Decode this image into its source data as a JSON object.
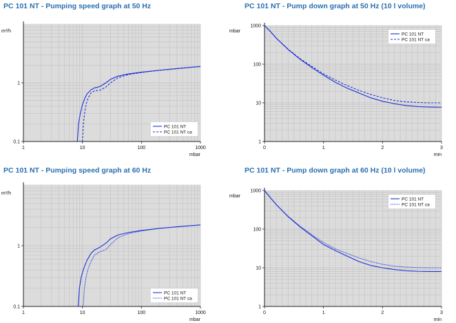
{
  "chart_data": [
    {
      "type": "line",
      "title": "PC 101 NT - Pumping speed graph at 50 Hz",
      "xscale": "log",
      "yscale": "log",
      "xlim": [
        1,
        1000
      ],
      "ylim": [
        0.1,
        10
      ],
      "xticks": [
        "1",
        "10",
        "100",
        "1000"
      ],
      "yticks": [
        "0.1",
        "1"
      ],
      "xlabel": "mbar",
      "ylabel": "m³/h",
      "legend": "bottom-right",
      "series": [
        {
          "name": "PC 101 NT",
          "style": "solid",
          "x": [
            8.2,
            8.6,
            9.2,
            10,
            11,
            12,
            14,
            16,
            18,
            20,
            25,
            30,
            40,
            60,
            100,
            200,
            400,
            1000
          ],
          "y": [
            0.1,
            0.2,
            0.3,
            0.42,
            0.55,
            0.65,
            0.76,
            0.82,
            0.84,
            0.87,
            1.0,
            1.15,
            1.3,
            1.42,
            1.52,
            1.64,
            1.75,
            1.9
          ]
        },
        {
          "name": "PC 101 NT ca",
          "style": "dashed",
          "x": [
            10,
            10.4,
            11,
            11.7,
            12.5,
            14,
            16,
            18,
            20,
            25,
            30,
            40,
            60,
            100,
            200,
            400,
            1000
          ],
          "y": [
            0.1,
            0.2,
            0.33,
            0.45,
            0.55,
            0.67,
            0.73,
            0.74,
            0.75,
            0.85,
            1.0,
            1.22,
            1.38,
            1.5,
            1.63,
            1.74,
            1.9
          ]
        }
      ]
    },
    {
      "type": "line",
      "title": "PC 101 NT - Pump down graph at 50 Hz (10 l volume)",
      "yscale": "log",
      "xlim": [
        0,
        3
      ],
      "ylim": [
        1,
        1000
      ],
      "xticks": [
        "0",
        "1",
        "2",
        "3"
      ],
      "yticks": [
        "1",
        "10",
        "100",
        "1000"
      ],
      "xlabel": "min",
      "ylabel": "mbar",
      "legend": "top-right",
      "series": [
        {
          "name": "PC 101 NT",
          "style": "solid",
          "x": [
            0,
            0.1,
            0.2,
            0.4,
            0.6,
            0.8,
            1.0,
            1.2,
            1.4,
            1.6,
            1.8,
            2.0,
            2.2,
            2.4,
            2.6,
            2.8,
            3.0
          ],
          "y": [
            1000,
            700,
            470,
            240,
            135,
            82,
            52,
            34,
            24,
            18,
            13.5,
            11,
            9.5,
            8.5,
            8,
            7.8,
            7.7
          ]
        },
        {
          "name": "PC 101 NT ca",
          "style": "dashed",
          "x": [
            0,
            0.1,
            0.2,
            0.4,
            0.6,
            0.8,
            1.0,
            1.2,
            1.4,
            1.6,
            1.8,
            2.0,
            2.2,
            2.4,
            2.6,
            2.8,
            3.0
          ],
          "y": [
            1000,
            700,
            470,
            245,
            140,
            88,
            56,
            39,
            28,
            21,
            16.5,
            13.5,
            11.5,
            10.6,
            10.2,
            10,
            10
          ]
        }
      ]
    },
    {
      "type": "line",
      "title": "PC 101 NT - Pumping speed graph at 60 Hz",
      "xscale": "log",
      "yscale": "log",
      "xlim": [
        1,
        1000
      ],
      "ylim": [
        0.1,
        10
      ],
      "xticks": [
        "1",
        "10",
        "100",
        "1000"
      ],
      "yticks": [
        "0.1",
        "1"
      ],
      "xlabel": "mbar",
      "ylabel": "m³/h",
      "legend": "bottom-right",
      "series": [
        {
          "name": "PC 101 NT",
          "style": "solid",
          "x": [
            8.5,
            8.9,
            9.5,
            10.5,
            12,
            14,
            16,
            20,
            25,
            30,
            40,
            60,
            100,
            200,
            400,
            1000
          ],
          "y": [
            0.1,
            0.2,
            0.3,
            0.42,
            0.58,
            0.75,
            0.85,
            0.95,
            1.1,
            1.3,
            1.5,
            1.65,
            1.78,
            1.93,
            2.05,
            2.2
          ]
        },
        {
          "name": "PC 101 NT ca",
          "style": "dotted",
          "x": [
            10.3,
            10.8,
            11.5,
            12.5,
            14,
            16,
            20,
            25,
            30,
            40,
            60,
            100,
            200,
            400,
            1000
          ],
          "y": [
            0.1,
            0.2,
            0.3,
            0.42,
            0.55,
            0.7,
            0.8,
            0.86,
            1.05,
            1.35,
            1.58,
            1.75,
            1.92,
            2.05,
            2.2
          ]
        }
      ]
    },
    {
      "type": "line",
      "title": "PC 101 NT - Pump down graph at 60 Hz (10 l volume)",
      "yscale": "log",
      "xlim": [
        0,
        3
      ],
      "ylim": [
        1,
        1000
      ],
      "xticks": [
        "0",
        "1",
        "2",
        "3"
      ],
      "yticks": [
        "1",
        "10",
        "100",
        "1000"
      ],
      "xlabel": "min",
      "ylabel": "mbar",
      "legend": "top-right",
      "series": [
        {
          "name": "PC 101 NT",
          "style": "solid",
          "x": [
            0,
            0.1,
            0.2,
            0.4,
            0.6,
            0.8,
            1.0,
            1.2,
            1.4,
            1.6,
            1.8,
            2.0,
            2.2,
            2.4,
            2.6,
            2.8,
            3.0
          ],
          "y": [
            1000,
            650,
            430,
            210,
            115,
            68,
            40,
            28,
            20,
            14.5,
            11.5,
            10,
            9,
            8.4,
            8.1,
            8,
            8
          ]
        },
        {
          "name": "PC 101 NT ca",
          "style": "dotted",
          "x": [
            0,
            0.1,
            0.2,
            0.4,
            0.6,
            0.8,
            1.0,
            1.2,
            1.4,
            1.6,
            1.8,
            2.0,
            2.2,
            2.4,
            2.6,
            2.8,
            3.0
          ],
          "y": [
            1000,
            650,
            430,
            215,
            120,
            72,
            45,
            31,
            23.5,
            18,
            14.5,
            12.3,
            11,
            10.4,
            10.1,
            10,
            10
          ]
        }
      ]
    }
  ],
  "colors": {
    "title": "#2a6fb0",
    "line": "#1a2fd6",
    "plot_bg": "#dcdcdc",
    "grid": "#c2c2c2"
  }
}
